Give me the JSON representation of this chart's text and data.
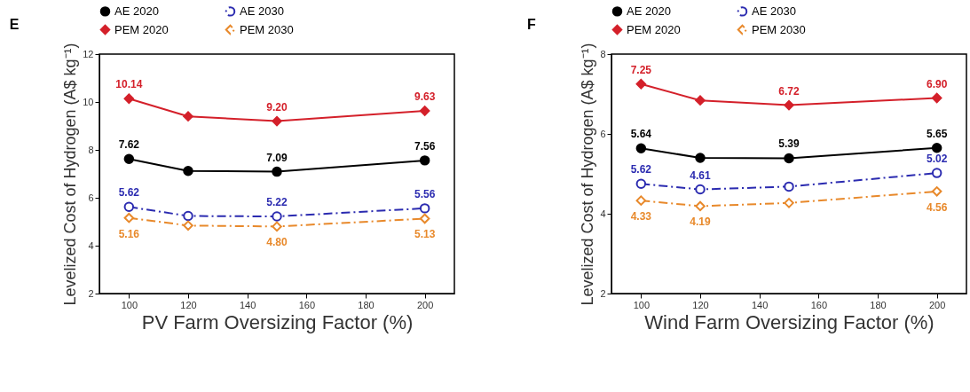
{
  "chart_data": [
    {
      "type": "line",
      "title": "E",
      "xlabel": "PV Farm Oversizing Factor (%)",
      "ylabel": "Levelized Cost of Hydrogen (A$ kg⁻¹)",
      "x": [
        100,
        120,
        150,
        200
      ],
      "xlim": [
        90,
        210
      ],
      "xticks": [
        100,
        120,
        140,
        160,
        180,
        200
      ],
      "ylim": [
        2,
        12
      ],
      "yticks": [
        2,
        4,
        6,
        8,
        10,
        12
      ],
      "legend": "top",
      "grid": false,
      "series": [
        {
          "name": "AE 2020",
          "color": "#000000",
          "marker": "circle",
          "line_style": "solid",
          "values": [
            7.62,
            7.12,
            7.09,
            7.56
          ],
          "value_labels": [
            "7.62",
            null,
            "7.09",
            "7.56"
          ]
        },
        {
          "name": "AE 2030",
          "color": "#2b2bb0",
          "marker": "circle",
          "line_style": "dashed",
          "values": [
            5.62,
            5.24,
            5.22,
            5.56
          ],
          "value_labels": [
            "5.62",
            null,
            "5.22",
            "5.56"
          ]
        },
        {
          "name": "PEM 2020",
          "color": "#d4202a",
          "marker": "diamond",
          "line_style": "solid",
          "values": [
            10.14,
            9.4,
            9.2,
            9.63
          ],
          "value_labels": [
            "10.14",
            null,
            "9.20",
            "9.63"
          ]
        },
        {
          "name": "PEM 2030",
          "color": "#e8892b",
          "marker": "diamond",
          "line_style": "dashed",
          "values": [
            5.16,
            4.84,
            4.8,
            5.13
          ],
          "value_labels": [
            "5.16",
            null,
            "4.80",
            "5.13"
          ]
        }
      ]
    },
    {
      "type": "line",
      "title": "F",
      "annotations": [
        {
          "text": "5.62",
          "x": 100,
          "y": 4.75
        }
      ],
      "xlabel": "Wind Farm Oversizing Factor (%)",
      "ylabel": "Levelized Cost of Hydrogen (A$ kg⁻¹)",
      "x": [
        100,
        120,
        150,
        200
      ],
      "xlim": [
        90,
        210
      ],
      "xticks": [
        100,
        120,
        140,
        160,
        180,
        200
      ],
      "ylim": [
        2,
        8
      ],
      "yticks": [
        2,
        4,
        6,
        8
      ],
      "legend": "top",
      "grid": false,
      "series": [
        {
          "name": "AE 2020",
          "color": "#000000",
          "marker": "circle",
          "line_style": "solid",
          "values": [
            5.64,
            5.4,
            5.39,
            5.65
          ],
          "value_labels": [
            "5.64",
            null,
            "5.39",
            "5.65"
          ]
        },
        {
          "name": "AE 2030",
          "color": "#2b2bb0",
          "marker": "circle",
          "line_style": "dashed",
          "values": [
            4.75,
            4.61,
            4.68,
            5.02
          ],
          "value_labels": [
            null,
            "4.61",
            null,
            "5.02"
          ]
        },
        {
          "name": "PEM 2020",
          "color": "#d4202a",
          "marker": "diamond",
          "line_style": "solid",
          "values": [
            7.25,
            6.84,
            6.72,
            6.9
          ],
          "value_labels": [
            "7.25",
            null,
            "6.72",
            "6.90"
          ]
        },
        {
          "name": "PEM 2030",
          "color": "#e8892b",
          "marker": "diamond",
          "line_style": "dashed",
          "values": [
            4.33,
            4.19,
            4.27,
            4.56
          ],
          "value_labels": [
            "4.33",
            "4.19",
            null,
            "4.56"
          ]
        }
      ]
    }
  ]
}
